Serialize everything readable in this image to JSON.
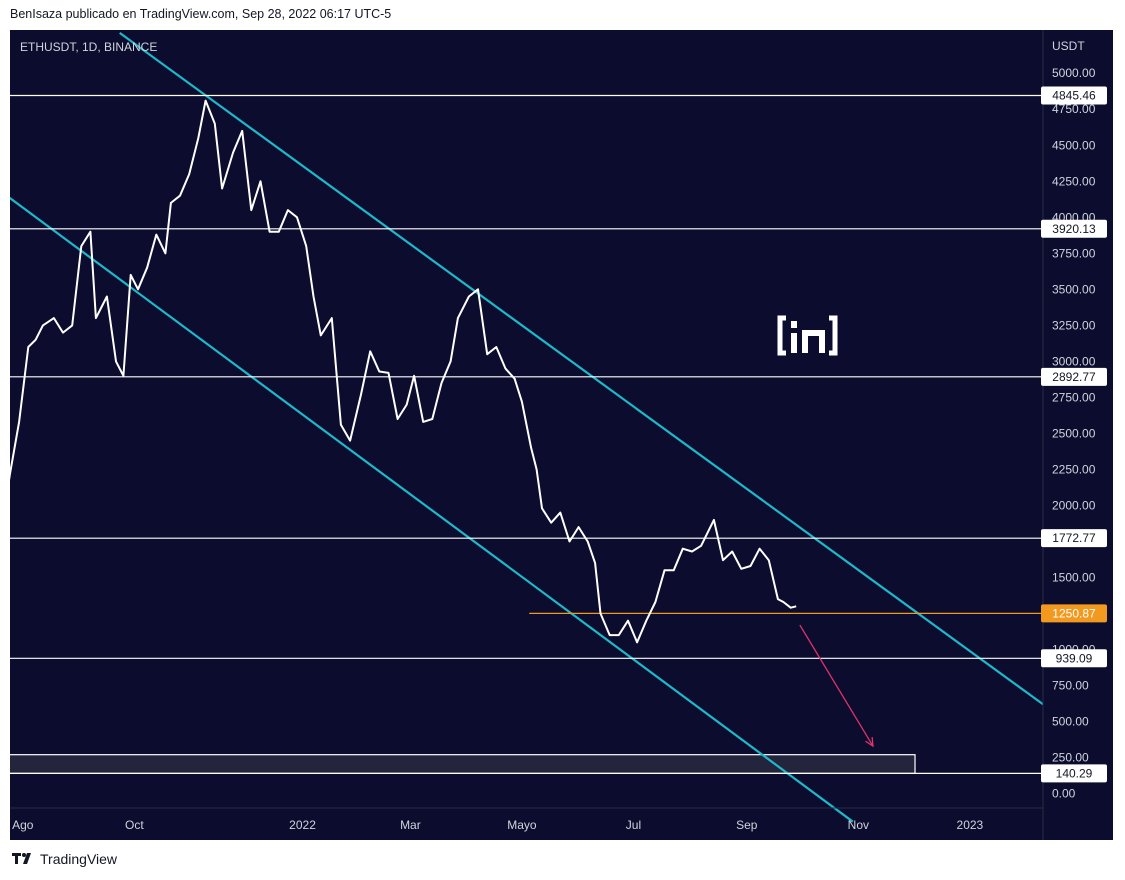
{
  "header": {
    "text": "BenIsaza publicado en TradingView.com, Sep 28, 2022 06:17 UTC-5"
  },
  "symbol": {
    "text": "ETHUSDT, 1D, BINANCE"
  },
  "footer": {
    "brand": "TradingView",
    "logo_icon": "tradingview-logo-icon"
  },
  "watermark": {
    "icon": "beincrypto-in-logo-icon"
  },
  "colors": {
    "background": "#0b0c2e",
    "price_line": "#ffffff",
    "channel": "#1fb8c9",
    "level_line": "#ffffff",
    "support_line": "#f29a1f",
    "arrow": "#e0336b",
    "zone_fill": "#23253d",
    "axis_text": "#d1d4dc"
  },
  "chart_data": {
    "type": "line",
    "title": "ETHUSDT, 1D, BINANCE",
    "ylabel": "USDT",
    "ylim": [
      -100,
      5300
    ],
    "xlim": [
      "2021-07-25",
      "2023-02-10"
    ],
    "y_ticks": [
      "0.00",
      "250.00",
      "500.00",
      "750.00",
      "1000.00",
      "1250.00",
      "1500.00",
      "1750.00",
      "2000.00",
      "2250.00",
      "2500.00",
      "2750.00",
      "3000.00",
      "3250.00",
      "3500.00",
      "3750.00",
      "4000.00",
      "4250.00",
      "4500.00",
      "4750.00",
      "5000.00"
    ],
    "x_ticks": [
      {
        "label": "Ago",
        "date": "2021-08-01"
      },
      {
        "label": "Oct",
        "date": "2021-10-01"
      },
      {
        "label": "2022",
        "date": "2022-01-01"
      },
      {
        "label": "Mar",
        "date": "2022-03-01"
      },
      {
        "label": "Mayo",
        "date": "2022-05-01"
      },
      {
        "label": "Jul",
        "date": "2022-07-01"
      },
      {
        "label": "Sep",
        "date": "2022-09-01"
      },
      {
        "label": "Nov",
        "date": "2022-11-01"
      },
      {
        "label": "2023",
        "date": "2023-01-01"
      }
    ],
    "series": [
      {
        "x": [
          "2021-07-20",
          "2021-07-25",
          "2021-07-30",
          "2021-08-04",
          "2021-08-08",
          "2021-08-12",
          "2021-08-18",
          "2021-08-23",
          "2021-08-28",
          "2021-09-02",
          "2021-09-07",
          "2021-09-10",
          "2021-09-16",
          "2021-09-21",
          "2021-09-25",
          "2021-09-29",
          "2021-10-03",
          "2021-10-08",
          "2021-10-13",
          "2021-10-18",
          "2021-10-21",
          "2021-10-26",
          "2021-10-31",
          "2021-11-05",
          "2021-11-09",
          "2021-11-14",
          "2021-11-18",
          "2021-11-24",
          "2021-11-29",
          "2021-12-04",
          "2021-12-09",
          "2021-12-14",
          "2021-12-19",
          "2021-12-24",
          "2021-12-29",
          "2022-01-03",
          "2022-01-07",
          "2022-01-11",
          "2022-01-17",
          "2022-01-22",
          "2022-01-27",
          "2022-02-02",
          "2022-02-07",
          "2022-02-12",
          "2022-02-17",
          "2022-02-22",
          "2022-02-27",
          "2022-03-03",
          "2022-03-08",
          "2022-03-13",
          "2022-03-18",
          "2022-03-23",
          "2022-03-27",
          "2022-04-02",
          "2022-04-07",
          "2022-04-12",
          "2022-04-17",
          "2022-04-22",
          "2022-04-27",
          "2022-05-01",
          "2022-05-06",
          "2022-05-09",
          "2022-05-12",
          "2022-05-17",
          "2022-05-22",
          "2022-05-27",
          "2022-06-01",
          "2022-06-06",
          "2022-06-10",
          "2022-06-13",
          "2022-06-18",
          "2022-06-23",
          "2022-06-28",
          "2022-07-03",
          "2022-07-08",
          "2022-07-13",
          "2022-07-18",
          "2022-07-23",
          "2022-07-28",
          "2022-08-02",
          "2022-08-07",
          "2022-08-14",
          "2022-08-19",
          "2022-08-24",
          "2022-08-29",
          "2022-09-03",
          "2022-09-08",
          "2022-09-13",
          "2022-09-18",
          "2022-09-21",
          "2022-09-25",
          "2022-09-28"
        ],
        "y": [
          1810,
          2220,
          2580,
          3100,
          3150,
          3250,
          3300,
          3200,
          3250,
          3800,
          3900,
          3300,
          3450,
          3000,
          2900,
          3600,
          3500,
          3650,
          3880,
          3750,
          4100,
          4150,
          4300,
          4550,
          4810,
          4650,
          4200,
          4450,
          4600,
          4050,
          4250,
          3900,
          3900,
          4050,
          4000,
          3800,
          3450,
          3180,
          3300,
          2560,
          2450,
          2770,
          3070,
          2930,
          2920,
          2600,
          2700,
          2900,
          2580,
          2600,
          2850,
          3000,
          3300,
          3450,
          3500,
          3050,
          3100,
          2950,
          2880,
          2720,
          2400,
          2250,
          1980,
          1880,
          1950,
          1750,
          1850,
          1750,
          1600,
          1250,
          1100,
          1100,
          1200,
          1050,
          1200,
          1330,
          1550,
          1550,
          1700,
          1680,
          1720,
          1900,
          1620,
          1680,
          1560,
          1580,
          1700,
          1620,
          1350,
          1330,
          1290,
          1300
        ]
      }
    ],
    "levels": [
      {
        "label": "4845.46",
        "value": 4845.46,
        "color": "#ffffff",
        "x_from": "2021-07-20"
      },
      {
        "label": "3920.13",
        "value": 3920.13,
        "color": "#ffffff",
        "x_from": "2021-07-20"
      },
      {
        "label": "2892.77",
        "value": 2892.77,
        "color": "#ffffff",
        "x_from": "2021-07-20"
      },
      {
        "label": "1772.77",
        "value": 1772.77,
        "color": "#ffffff",
        "x_from": "2021-07-20"
      },
      {
        "label": "1250.87",
        "value": 1250.87,
        "color": "#f29a1f",
        "x_from": "2022-05-05"
      },
      {
        "label": "939.09",
        "value": 939.09,
        "color": "#ffffff",
        "x_from": "2021-07-20"
      },
      {
        "label": "140.29",
        "value": 140.29,
        "color": "#ffffff",
        "x_from": "2021-07-20"
      }
    ],
    "zone": {
      "y_from": 140.29,
      "y_to": 270,
      "x_from": "2021-07-20",
      "x_to": "2022-12-02"
    },
    "channel_lines": [
      {
        "x1": "2021-07-20",
        "y1": 4180,
        "x2": "2022-10-29",
        "y2": -195
      },
      {
        "x1": "2021-09-23",
        "y1": 5280,
        "x2": "2023-02-10",
        "y2": 620
      }
    ],
    "arrow": {
      "x1": "2022-09-30",
      "y1": 1170,
      "x2": "2022-11-09",
      "y2": 330
    },
    "grid": false,
    "legend": "none"
  }
}
